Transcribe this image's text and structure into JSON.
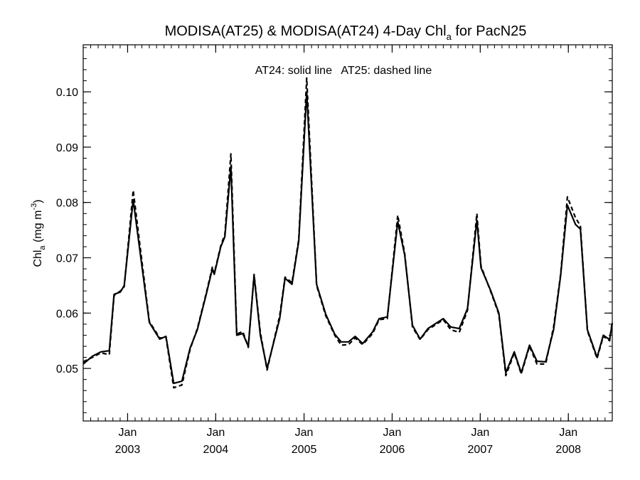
{
  "chart_data": {
    "type": "line",
    "title_main": "MODISA(AT25) & MODISA(AT24) 4-Day Chl",
    "title_sub": "a",
    "title_tail": " for PacN25",
    "annotation": "AT24: solid line   AT25: dashed line",
    "ylabel_main": "Chl",
    "ylabel_sub": "a",
    "ylabel_units": " (mg m",
    "ylabel_sup": "-3",
    "ylabel_close": ")",
    "ylim": [
      0.0405,
      0.1085
    ],
    "xlim": [
      "2002-07-01",
      "2008-07-01"
    ],
    "y_ticks": [
      0.05,
      0.06,
      0.07,
      0.08,
      0.09,
      0.1
    ],
    "y_tick_labels": [
      "0.05",
      "0.06",
      "0.07",
      "0.08",
      "0.09",
      "0.10"
    ],
    "x_ticks": [
      {
        "date": "2003-01-01",
        "month": "Jan",
        "year": "2003"
      },
      {
        "date": "2004-01-01",
        "month": "Jan",
        "year": "2004"
      },
      {
        "date": "2005-01-01",
        "month": "Jan",
        "year": "2005"
      },
      {
        "date": "2006-01-01",
        "month": "Jan",
        "year": "2006"
      },
      {
        "date": "2007-01-01",
        "month": "Jan",
        "year": "2007"
      },
      {
        "date": "2008-01-01",
        "month": "Jan",
        "year": "2008"
      }
    ],
    "grid": false,
    "series": [
      {
        "name": "AT24",
        "style": "solid",
        "points": [
          [
            "2002-07-01",
            0.0508
          ],
          [
            "2002-08-08",
            0.0522
          ],
          [
            "2002-09-12",
            0.053
          ],
          [
            "2002-10-17",
            0.0532
          ],
          [
            "2002-11-06",
            0.0634
          ],
          [
            "2002-12-02",
            0.0638
          ],
          [
            "2002-12-18",
            0.065
          ],
          [
            "2003-01-24",
            0.0805
          ],
          [
            "2003-04-01",
            0.0583
          ],
          [
            "2003-05-14",
            0.0553
          ],
          [
            "2003-06-09",
            0.0558
          ],
          [
            "2003-07-11",
            0.0473
          ],
          [
            "2003-08-14",
            0.0477
          ],
          [
            "2003-09-17",
            0.0537
          ],
          [
            "2003-10-17",
            0.057
          ],
          [
            "2003-11-24",
            0.0636
          ],
          [
            "2003-12-18",
            0.068
          ],
          [
            "2003-12-26",
            0.067
          ],
          [
            "2004-01-22",
            0.072
          ],
          [
            "2004-02-08",
            0.0738
          ],
          [
            "2004-03-04",
            0.0865
          ],
          [
            "2004-03-28",
            0.056
          ],
          [
            "2004-04-22",
            0.0563
          ],
          [
            "2004-05-15",
            0.054
          ],
          [
            "2004-06-08",
            0.0668
          ],
          [
            "2004-07-04",
            0.056
          ],
          [
            "2004-08-01",
            0.05
          ],
          [
            "2004-09-22",
            0.059
          ],
          [
            "2004-10-14",
            0.0663
          ],
          [
            "2004-11-12",
            0.0652
          ],
          [
            "2004-12-10",
            0.073
          ],
          [
            "2005-01-12",
            0.1
          ],
          [
            "2005-02-22",
            0.0652
          ],
          [
            "2005-04-01",
            0.0598
          ],
          [
            "2005-05-08",
            0.0562
          ],
          [
            "2005-06-04",
            0.0548
          ],
          [
            "2005-07-04",
            0.0548
          ],
          [
            "2005-08-01",
            0.0558
          ],
          [
            "2005-09-01",
            0.0545
          ],
          [
            "2005-10-12",
            0.0566
          ],
          [
            "2005-11-08",
            0.059
          ],
          [
            "2005-12-12",
            0.0593
          ],
          [
            "2006-01-24",
            0.0765
          ],
          [
            "2006-02-22",
            0.0705
          ],
          [
            "2006-03-26",
            0.0578
          ],
          [
            "2006-04-27",
            0.0553
          ],
          [
            "2006-05-29",
            0.0572
          ],
          [
            "2006-08-01",
            0.059
          ],
          [
            "2006-09-01",
            0.0575
          ],
          [
            "2006-10-06",
            0.0572
          ],
          [
            "2006-11-09",
            0.0608
          ],
          [
            "2006-12-18",
            0.0768
          ],
          [
            "2007-01-04",
            0.0682
          ],
          [
            "2007-02-14",
            0.064
          ],
          [
            "2007-03-19",
            0.06
          ],
          [
            "2007-04-17",
            0.0492
          ],
          [
            "2007-05-22",
            0.053
          ],
          [
            "2007-06-20",
            0.0492
          ],
          [
            "2007-07-24",
            0.0542
          ],
          [
            "2007-08-24",
            0.0513
          ],
          [
            "2007-09-29",
            0.0512
          ],
          [
            "2007-11-01",
            0.057
          ],
          [
            "2007-11-30",
            0.0668
          ],
          [
            "2007-12-28",
            0.0795
          ],
          [
            "2008-01-31",
            0.076
          ],
          [
            "2008-02-20",
            0.0752
          ],
          [
            "2008-03-20",
            0.057
          ],
          [
            "2008-04-29",
            0.052
          ],
          [
            "2008-05-25",
            0.056
          ],
          [
            "2008-06-20",
            0.0552
          ],
          [
            "2008-07-01",
            0.0582
          ]
        ]
      },
      {
        "name": "AT25",
        "style": "dashed",
        "points": [
          [
            "2002-07-01",
            0.0512
          ],
          [
            "2002-08-08",
            0.052
          ],
          [
            "2002-09-12",
            0.0528
          ],
          [
            "2002-10-17",
            0.0525
          ],
          [
            "2002-11-06",
            0.0632
          ],
          [
            "2002-12-02",
            0.064
          ],
          [
            "2002-12-18",
            0.0648
          ],
          [
            "2003-01-24",
            0.0822
          ],
          [
            "2003-04-01",
            0.0585
          ],
          [
            "2003-05-14",
            0.0555
          ],
          [
            "2003-06-09",
            0.0556
          ],
          [
            "2003-07-11",
            0.0465
          ],
          [
            "2003-08-14",
            0.047
          ],
          [
            "2003-09-17",
            0.0535
          ],
          [
            "2003-10-17",
            0.0572
          ],
          [
            "2003-11-24",
            0.0638
          ],
          [
            "2003-12-18",
            0.0683
          ],
          [
            "2003-12-26",
            0.0672
          ],
          [
            "2004-01-22",
            0.0722
          ],
          [
            "2004-02-08",
            0.0742
          ],
          [
            "2004-03-04",
            0.0888
          ],
          [
            "2004-03-28",
            0.0562
          ],
          [
            "2004-04-22",
            0.0567
          ],
          [
            "2004-05-15",
            0.0538
          ],
          [
            "2004-06-08",
            0.067
          ],
          [
            "2004-07-04",
            0.0565
          ],
          [
            "2004-08-01",
            0.0497
          ],
          [
            "2004-09-22",
            0.0595
          ],
          [
            "2004-10-14",
            0.0665
          ],
          [
            "2004-11-12",
            0.0655
          ],
          [
            "2004-12-10",
            0.0733
          ],
          [
            "2005-01-12",
            0.1025
          ],
          [
            "2005-02-22",
            0.065
          ],
          [
            "2005-04-01",
            0.0595
          ],
          [
            "2005-05-08",
            0.056
          ],
          [
            "2005-06-04",
            0.0542
          ],
          [
            "2005-07-04",
            0.0543
          ],
          [
            "2005-08-01",
            0.0555
          ],
          [
            "2005-09-01",
            0.0543
          ],
          [
            "2005-10-12",
            0.0563
          ],
          [
            "2005-11-08",
            0.0588
          ],
          [
            "2005-12-12",
            0.059
          ],
          [
            "2006-01-24",
            0.0777
          ],
          [
            "2006-02-22",
            0.0708
          ],
          [
            "2006-03-26",
            0.0575
          ],
          [
            "2006-04-27",
            0.0552
          ],
          [
            "2006-05-29",
            0.057
          ],
          [
            "2006-08-01",
            0.0588
          ],
          [
            "2006-09-01",
            0.057
          ],
          [
            "2006-10-06",
            0.0565
          ],
          [
            "2006-11-09",
            0.0605
          ],
          [
            "2006-12-18",
            0.078
          ],
          [
            "2007-01-04",
            0.0685
          ],
          [
            "2007-02-14",
            0.0638
          ],
          [
            "2007-03-19",
            0.0598
          ],
          [
            "2007-04-17",
            0.0487
          ],
          [
            "2007-05-22",
            0.0528
          ],
          [
            "2007-06-20",
            0.049
          ],
          [
            "2007-07-24",
            0.054
          ],
          [
            "2007-08-24",
            0.0508
          ],
          [
            "2007-09-29",
            0.0508
          ],
          [
            "2007-11-01",
            0.0575
          ],
          [
            "2007-11-30",
            0.067
          ],
          [
            "2007-12-28",
            0.081
          ],
          [
            "2008-01-31",
            0.0772
          ],
          [
            "2008-02-20",
            0.0758
          ],
          [
            "2008-03-20",
            0.0568
          ],
          [
            "2008-04-29",
            0.0518
          ],
          [
            "2008-05-25",
            0.0558
          ],
          [
            "2008-06-20",
            0.055
          ],
          [
            "2008-07-01",
            0.0585
          ]
        ]
      }
    ]
  }
}
